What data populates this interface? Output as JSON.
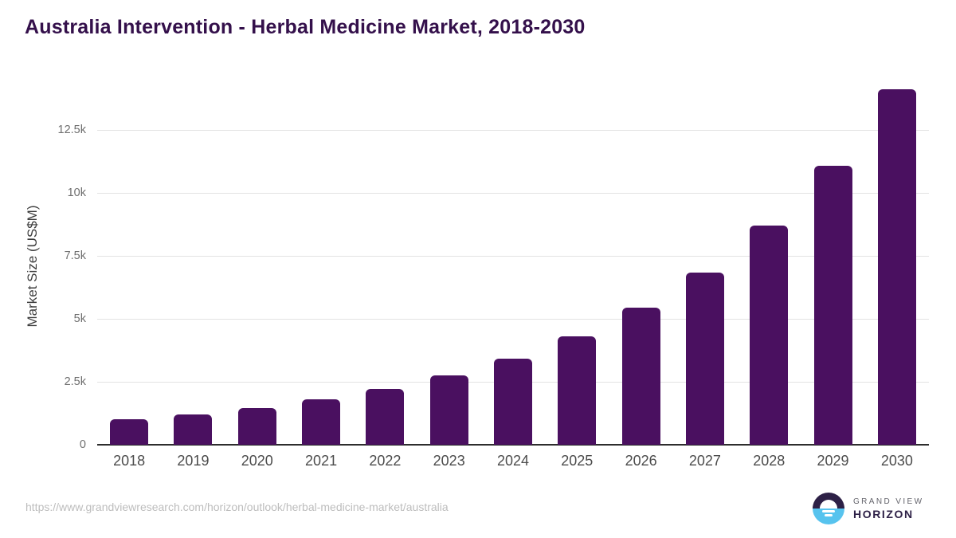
{
  "chart_data": {
    "type": "bar",
    "title": "Australia Intervention - Herbal Medicine Market, 2018-2030",
    "categories": [
      "2018",
      "2019",
      "2020",
      "2021",
      "2022",
      "2023",
      "2024",
      "2025",
      "2026",
      "2027",
      "2028",
      "2029",
      "2030"
    ],
    "values": [
      1010,
      1210,
      1470,
      1800,
      2230,
      2740,
      3430,
      4290,
      5440,
      6840,
      8690,
      11060,
      14120
    ],
    "xlabel": "",
    "ylabel": "Market Size (US$M)",
    "ylim": [
      0,
      14170
    ],
    "ytick_values": [
      0,
      2500,
      5000,
      7500,
      10000,
      12500
    ],
    "ytick_labels": [
      "0",
      "2.5k",
      "5k",
      "7.5k",
      "10k",
      "12.5k"
    ],
    "grid": true,
    "legend_position": "none"
  },
  "colors": {
    "title": "#34104b",
    "bar": "#4a1060",
    "gridline": "#e3e3e3",
    "axis_line": "#2d2d2d",
    "y_tick_label": "#6f6f6f",
    "x_tick_label": "#4c4c4c",
    "axis_title": "#3d3d3d",
    "url_text": "#bdbdbd",
    "logo_dark": "#2d2046",
    "logo_blue": "#57c3ee",
    "logo_gray": "#63636b"
  },
  "footer": {
    "source_url": "https://www.grandviewresearch.com/horizon/outlook/herbal-medicine-market/australia",
    "logo": {
      "top": "GRAND VIEW",
      "bottom": "HORIZON"
    }
  }
}
